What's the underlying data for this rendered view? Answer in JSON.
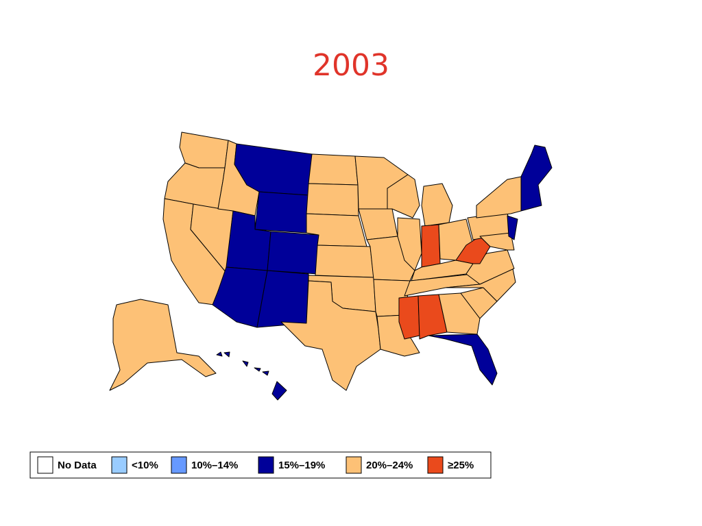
{
  "title": "2003",
  "legend": [
    {
      "label": "No Data",
      "color": "#ffffff"
    },
    {
      "label": "<10%",
      "color": "#99ccff"
    },
    {
      "label": "10%–14%",
      "color": "#6699ff"
    },
    {
      "label": "15%–19%",
      "color": "#000099"
    },
    {
      "label": "20%–24%",
      "color": "#fdc176"
    },
    {
      "label": "≥25%",
      "color": "#ea4a1c"
    }
  ]
}
